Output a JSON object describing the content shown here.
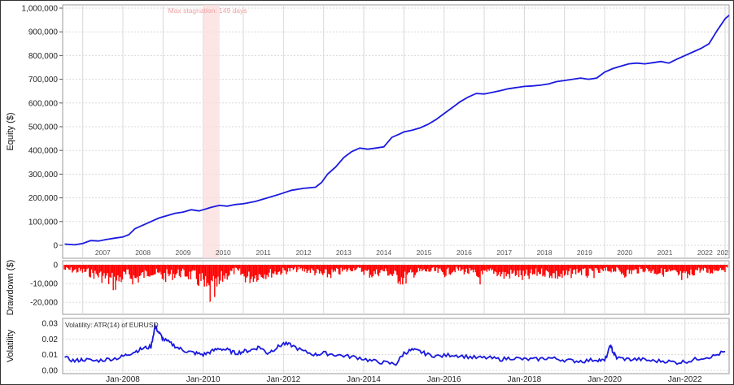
{
  "chart_data": [
    {
      "type": "line",
      "panel": "equity",
      "ylabel": "Equity ($)",
      "ylim": [
        0,
        1000000
      ],
      "yticks": [
        "1,000,000",
        "900,000",
        "800,000",
        "700,000",
        "600,000",
        "500,000",
        "400,000",
        "300,000",
        "200,000",
        "100,000",
        "0"
      ],
      "xlim": [
        2006.5,
        2023.1
      ],
      "year_labels": [
        "2007",
        "2008",
        "2009",
        "2010",
        "2011",
        "2012",
        "2013",
        "2014",
        "2015",
        "2016",
        "2017",
        "2018",
        "2019",
        "2020",
        "2021",
        "2022",
        "202"
      ],
      "annotation": "Max stagnation: 149 days",
      "stagnation_band": [
        2010.0,
        2010.41
      ],
      "line_color": "#1a1adf",
      "series": [
        {
          "x": [
            2006.55,
            2006.8,
            2007.0,
            2007.2,
            2007.4,
            2007.6,
            2007.8,
            2008.0,
            2008.15,
            2008.3,
            2008.5,
            2008.7,
            2008.9,
            2009.1,
            2009.3,
            2009.5,
            2009.7,
            2009.9,
            2010.0,
            2010.2,
            2010.4,
            2010.6,
            2010.8,
            2011.0,
            2011.3,
            2011.6,
            2011.9,
            2012.2,
            2012.5,
            2012.8,
            2012.95,
            2013.1,
            2013.3,
            2013.5,
            2013.7,
            2013.9,
            2014.1,
            2014.3,
            2014.5,
            2014.7,
            2014.9,
            2015.0,
            2015.2,
            2015.4,
            2015.6,
            2015.8,
            2016.0,
            2016.2,
            2016.4,
            2016.6,
            2016.8,
            2017.0,
            2017.2,
            2017.4,
            2017.6,
            2017.8,
            2018.0,
            2018.2,
            2018.4,
            2018.6,
            2018.8,
            2019.0,
            2019.2,
            2019.4,
            2019.6,
            2019.8,
            2020.0,
            2020.2,
            2020.4,
            2020.6,
            2020.8,
            2021.0,
            2021.2,
            2021.4,
            2021.6,
            2021.8,
            2022.0,
            2022.2,
            2022.4,
            2022.6,
            2022.8,
            2023.0,
            2023.1
          ],
          "y": [
            5000,
            2000,
            8000,
            20000,
            18000,
            25000,
            30000,
            35000,
            45000,
            70000,
            85000,
            100000,
            115000,
            125000,
            135000,
            140000,
            150000,
            145000,
            150000,
            160000,
            168000,
            165000,
            172000,
            175000,
            185000,
            200000,
            215000,
            232000,
            240000,
            245000,
            265000,
            300000,
            330000,
            370000,
            395000,
            410000,
            405000,
            410000,
            415000,
            455000,
            470000,
            478000,
            485000,
            495000,
            510000,
            530000,
            555000,
            580000,
            605000,
            625000,
            640000,
            638000,
            645000,
            652000,
            660000,
            665000,
            670000,
            672000,
            675000,
            680000,
            690000,
            695000,
            700000,
            705000,
            700000,
            705000,
            730000,
            745000,
            755000,
            765000,
            768000,
            765000,
            770000,
            775000,
            768000,
            785000,
            800000,
            815000,
            830000,
            850000,
            905000,
            955000,
            970000
          ]
        }
      ]
    },
    {
      "type": "area",
      "panel": "drawdown",
      "ylabel": "Drawdown ($)",
      "ylim": [
        -26000,
        0
      ],
      "yticks": [
        "0",
        "-10,000",
        "-20,000"
      ],
      "fill_color": "#ff0000",
      "series": [
        {
          "x": [
            2006.6,
            2007.1,
            2007.5,
            2007.8,
            2008.1,
            2008.3,
            2008.7,
            2009.0,
            2009.4,
            2009.7,
            2009.95,
            2010.1,
            2010.3,
            2010.5,
            2010.8,
            2011.1,
            2011.5,
            2011.9,
            2012.3,
            2012.7,
            2013.0,
            2013.4,
            2013.8,
            2014.2,
            2014.5,
            2014.8,
            2015.0,
            2015.3,
            2015.7,
            2016.0,
            2016.3,
            2016.6,
            2016.9,
            2017.2,
            2017.5,
            2017.8,
            2018.0,
            2018.4,
            2018.7,
            2019.0,
            2019.3,
            2019.6,
            2019.9,
            2020.2,
            2020.5,
            2020.8,
            2021.0,
            2021.3,
            2021.7,
            2022.0,
            2022.3,
            2022.6,
            2022.9,
            2023.1
          ],
          "y": [
            -4000,
            -6000,
            -10000,
            -15000,
            -8000,
            -12000,
            -6000,
            -10000,
            -7000,
            -9000,
            -14000,
            -23000,
            -24000,
            -10000,
            -5000,
            -11000,
            -8000,
            -6000,
            -4000,
            -5000,
            -9000,
            -6000,
            -3000,
            -8000,
            -5000,
            -10000,
            -12000,
            -6000,
            -5000,
            -7000,
            -4000,
            -6000,
            -11000,
            -5000,
            -9000,
            -7000,
            -11000,
            -6000,
            -8000,
            -10000,
            -5000,
            -8000,
            -6000,
            -4000,
            -7000,
            -5000,
            -4000,
            -6000,
            -7000,
            -12000,
            -4000,
            -6000,
            -3000,
            -5000
          ]
        }
      ]
    },
    {
      "type": "line",
      "panel": "volatility",
      "ylabel": "Volatility",
      "ylim": [
        0,
        0.03
      ],
      "yticks": [
        "0.03",
        "0.02",
        "0.01",
        "0.00"
      ],
      "x_date_labels": [
        "Jan-2008",
        "Jan-2010",
        "Jan-2012",
        "Jan-2014",
        "Jan-2016",
        "Jan-2018",
        "Jan-2020",
        "Jan-2022"
      ],
      "series_label": "Volatility: ATR(14) of EURUSD",
      "line_color": "#1a1adf",
      "series": [
        {
          "x": [
            2006.55,
            2006.8,
            2007.0,
            2007.3,
            2007.6,
            2007.9,
            2008.1,
            2008.3,
            2008.5,
            2008.7,
            2008.8,
            2008.9,
            2009.0,
            2009.2,
            2009.4,
            2009.6,
            2009.8,
            2010.0,
            2010.2,
            2010.4,
            2010.6,
            2010.8,
            2011.0,
            2011.2,
            2011.4,
            2011.6,
            2011.8,
            2012.0,
            2012.2,
            2012.5,
            2012.8,
            2013.0,
            2013.3,
            2013.6,
            2013.9,
            2014.2,
            2014.5,
            2014.8,
            2015.0,
            2015.2,
            2015.4,
            2015.6,
            2015.9,
            2016.2,
            2016.5,
            2016.8,
            2017.1,
            2017.4,
            2017.7,
            2018.0,
            2018.3,
            2018.6,
            2018.9,
            2019.2,
            2019.5,
            2019.8,
            2020.0,
            2020.15,
            2020.2,
            2020.3,
            2020.6,
            2020.9,
            2021.2,
            2021.5,
            2021.8,
            2022.1,
            2022.4,
            2022.7,
            2023.0
          ],
          "y": [
            0.008,
            0.006,
            0.007,
            0.006,
            0.007,
            0.008,
            0.01,
            0.012,
            0.014,
            0.015,
            0.028,
            0.024,
            0.02,
            0.017,
            0.014,
            0.012,
            0.011,
            0.01,
            0.012,
            0.014,
            0.013,
            0.011,
            0.012,
            0.013,
            0.015,
            0.011,
            0.014,
            0.017,
            0.016,
            0.012,
            0.01,
            0.011,
            0.01,
            0.009,
            0.008,
            0.006,
            0.005,
            0.004,
            0.011,
            0.013,
            0.012,
            0.01,
            0.009,
            0.01,
            0.009,
            0.008,
            0.008,
            0.007,
            0.008,
            0.007,
            0.007,
            0.008,
            0.007,
            0.006,
            0.006,
            0.007,
            0.006,
            0.016,
            0.012,
            0.008,
            0.007,
            0.007,
            0.006,
            0.006,
            0.005,
            0.006,
            0.008,
            0.009,
            0.012
          ]
        }
      ]
    }
  ]
}
